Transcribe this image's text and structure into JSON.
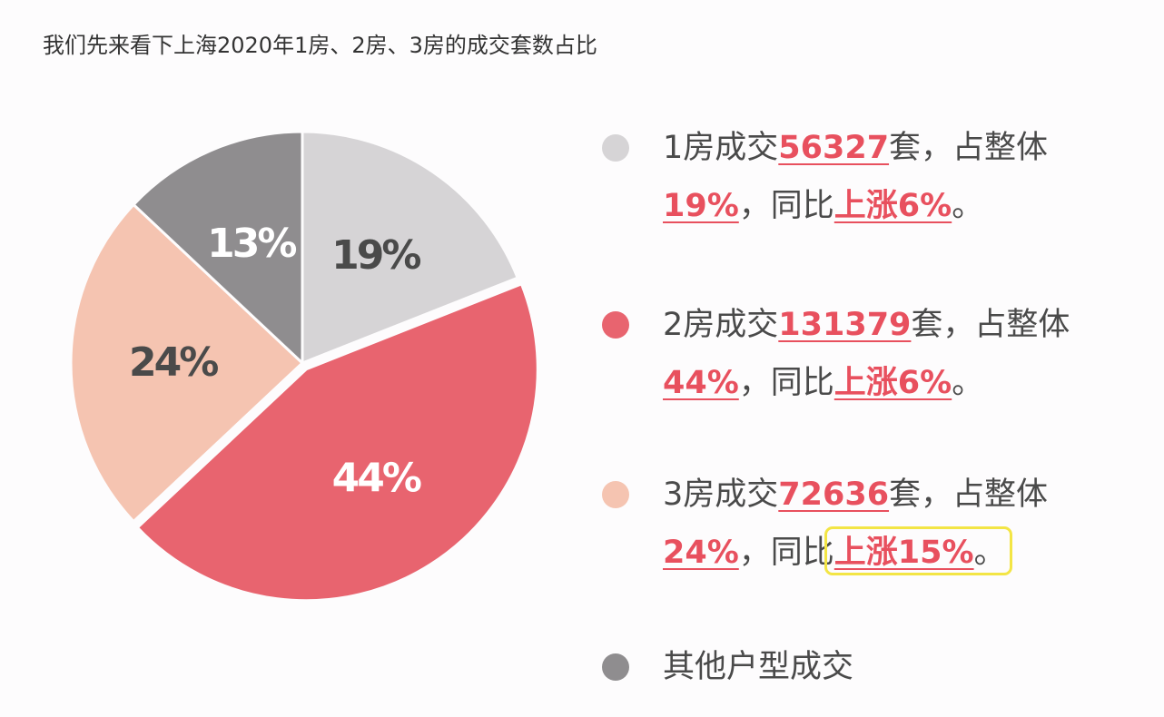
{
  "chart_data": {
    "type": "pie",
    "title": "我们先来看下上海2020年1房、2房、3房的成交套数占比",
    "values": [
      19,
      44,
      24,
      13
    ],
    "value_labels": [
      "19%",
      "44%",
      "24%",
      "13%"
    ],
    "colors": [
      "#d6d4d6",
      "#e8646f",
      "#f5c4b1",
      "#8f8d8f"
    ],
    "label_colors": [
      "#4a4a4a",
      "#ffffff",
      "#4a4a4a",
      "#ffffff"
    ],
    "exploded": 1,
    "legend": [
      {
        "prefix": "1房成交",
        "count": 56327,
        "suffix": "套，占整体",
        "mid": "，同比",
        "change": "上涨6%",
        "end": "。",
        "highlighted": false
      },
      {
        "prefix": "2房成交",
        "count": 131379,
        "suffix": "套，占整体",
        "mid": "，同比",
        "change": "上涨6%",
        "end": "。",
        "highlighted": false
      },
      {
        "prefix": "3房成交",
        "count": 72636,
        "suffix": "套，占整体",
        "mid": "，同比",
        "change": "上涨15%",
        "end": "。",
        "highlighted": true
      },
      {
        "prefix": "其他户型成交"
      }
    ]
  }
}
